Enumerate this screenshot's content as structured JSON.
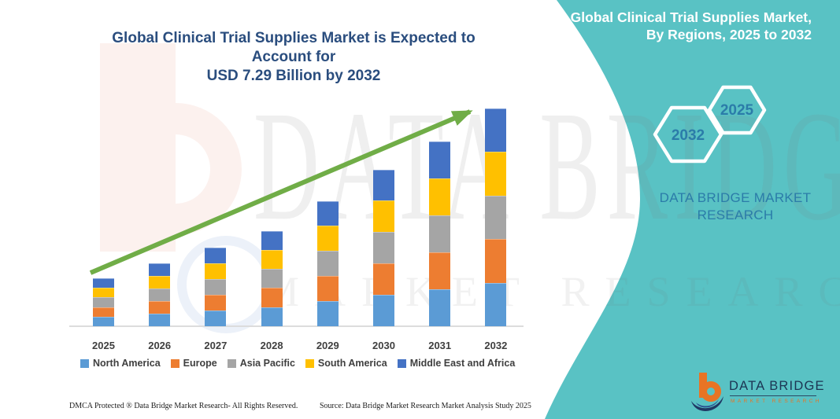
{
  "main_title": {
    "line1": "Global Clinical Trial Supplies Market is Expected to Account for",
    "line2": "USD 7.29 Billion by 2032"
  },
  "side_panel": {
    "title_line1": "Global Clinical Trial Supplies Market,",
    "title_line2": "By Regions, 2025 to 2032",
    "hexagons": [
      {
        "label": "2032"
      },
      {
        "label": "2025"
      }
    ],
    "brand_line1": "DATA BRIDGE MARKET",
    "brand_line2": "RESEARCH",
    "logo_name": "DATA BRIDGE",
    "logo_sub": "MARKET RESEARCH",
    "background_color": "#59c2c4",
    "accent_color": "#2b7ca9"
  },
  "watermark": {
    "line1": "DATA BRIDGE",
    "line2": "MARKET RESEARCH"
  },
  "footer": {
    "left": "DMCA Protected ® Data Bridge Market Research-  All Rights Reserved.",
    "right": "Source: Data Bridge Market Research  Market Analysis Study 2025"
  },
  "chart_data": {
    "type": "bar",
    "subtype": "stacked-column",
    "title": "Global Clinical Trial Supplies Market is Expected to Account for USD 7.29 Billion by 2032",
    "unit": "USD Billion",
    "categories": [
      "2025",
      "2026",
      "2027",
      "2028",
      "2029",
      "2030",
      "2031",
      "2032"
    ],
    "series": [
      {
        "name": "North America",
        "color": "#5B9BD5",
        "values": [
          0.32,
          0.42,
          0.53,
          0.64,
          0.84,
          1.05,
          1.24,
          1.46
        ]
      },
      {
        "name": "Europe",
        "color": "#ED7D31",
        "values": [
          0.32,
          0.42,
          0.53,
          0.64,
          0.84,
          1.05,
          1.24,
          1.46
        ]
      },
      {
        "name": "Asia Pacific",
        "color": "#A5A5A5",
        "values": [
          0.32,
          0.42,
          0.53,
          0.64,
          0.84,
          1.05,
          1.24,
          1.46
        ]
      },
      {
        "name": "South America",
        "color": "#FFC000",
        "values": [
          0.32,
          0.42,
          0.53,
          0.64,
          0.84,
          1.05,
          1.24,
          1.46
        ]
      },
      {
        "name": "Middle East and Africa",
        "color": "#4472C4",
        "values": [
          0.32,
          0.42,
          0.53,
          0.64,
          0.84,
          1.05,
          1.24,
          1.46
        ]
      }
    ],
    "totals": [
      1.6,
      2.1,
      2.65,
      3.2,
      4.2,
      5.25,
      6.2,
      7.29
    ],
    "values_estimated_from_pixels": true,
    "xlabel": "",
    "ylabel": "",
    "ylim": [
      0,
      7.5
    ],
    "gridlines": false,
    "y_axis_labels_shown": false,
    "legend_position": "bottom",
    "trend_arrow": true,
    "trend_color": "#70AD47"
  }
}
